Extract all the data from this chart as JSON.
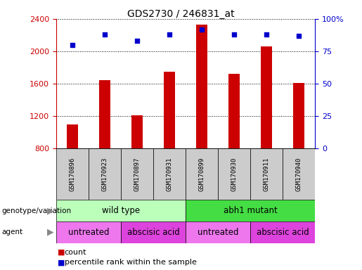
{
  "title": "GDS2730 / 246831_at",
  "samples": [
    "GSM170896",
    "GSM170923",
    "GSM170897",
    "GSM170931",
    "GSM170899",
    "GSM170930",
    "GSM170911",
    "GSM170940"
  ],
  "counts": [
    1100,
    1640,
    1210,
    1750,
    2330,
    1720,
    2060,
    1610
  ],
  "percentile_ranks": [
    80,
    88,
    83,
    88,
    92,
    88,
    88,
    87
  ],
  "ylim_left": [
    800,
    2400
  ],
  "ylim_right": [
    0,
    100
  ],
  "yticks_left": [
    800,
    1200,
    1600,
    2000,
    2400
  ],
  "yticks_right": [
    0,
    25,
    50,
    75,
    100
  ],
  "bar_color": "#cc0000",
  "dot_color": "#0000cc",
  "genotype_groups": [
    {
      "label": "wild type",
      "span": [
        0,
        4
      ],
      "color": "#bbffbb"
    },
    {
      "label": "abh1 mutant",
      "span": [
        4,
        8
      ],
      "color": "#44dd44"
    }
  ],
  "agent_groups": [
    {
      "label": "untreated",
      "span": [
        0,
        2
      ],
      "color": "#ee77ee"
    },
    {
      "label": "abscisic acid",
      "span": [
        2,
        4
      ],
      "color": "#dd44dd"
    },
    {
      "label": "untreated",
      "span": [
        4,
        6
      ],
      "color": "#ee77ee"
    },
    {
      "label": "abscisic acid",
      "span": [
        6,
        8
      ],
      "color": "#dd44dd"
    }
  ],
  "left_axis_color": "#cc0000",
  "right_axis_color": "#0000cc",
  "label_box_color": "#cccccc",
  "right_tick_labels": [
    "0",
    "25",
    "50",
    "75",
    "100%"
  ]
}
